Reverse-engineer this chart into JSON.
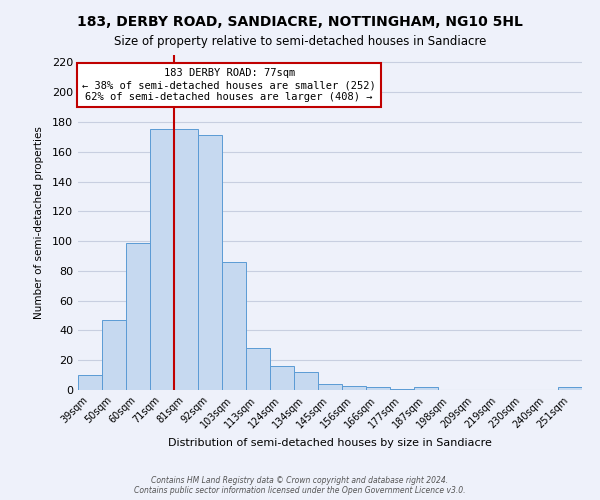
{
  "title": "183, DERBY ROAD, SANDIACRE, NOTTINGHAM, NG10 5HL",
  "subtitle": "Size of property relative to semi-detached houses in Sandiacre",
  "xlabel": "Distribution of semi-detached houses by size in Sandiacre",
  "ylabel": "Number of semi-detached properties",
  "bar_labels": [
    "39sqm",
    "50sqm",
    "60sqm",
    "71sqm",
    "81sqm",
    "92sqm",
    "103sqm",
    "113sqm",
    "124sqm",
    "134sqm",
    "145sqm",
    "156sqm",
    "166sqm",
    "177sqm",
    "187sqm",
    "198sqm",
    "209sqm",
    "219sqm",
    "230sqm",
    "240sqm",
    "251sqm"
  ],
  "bar_values": [
    10,
    47,
    99,
    175,
    175,
    171,
    86,
    28,
    16,
    12,
    4,
    3,
    2,
    1,
    2,
    0,
    0,
    0,
    0,
    0,
    2
  ],
  "bar_color": "#c6d9f0",
  "bar_edgecolor": "#5b9bd5",
  "ylim": [
    0,
    225
  ],
  "yticks": [
    0,
    20,
    40,
    60,
    80,
    100,
    120,
    140,
    160,
    180,
    200,
    220
  ],
  "marker_color": "#c00000",
  "annotation_title": "183 DERBY ROAD: 77sqm",
  "annotation_line1": "← 38% of semi-detached houses are smaller (252)",
  "annotation_line2": "62% of semi-detached houses are larger (408) →",
  "annotation_box_facecolor": "#ffffff",
  "annotation_box_edgecolor": "#c00000",
  "footer1": "Contains HM Land Registry data © Crown copyright and database right 2024.",
  "footer2": "Contains public sector information licensed under the Open Government Licence v3.0.",
  "bg_color": "#eef1fa",
  "grid_color": "#c8cfe0"
}
